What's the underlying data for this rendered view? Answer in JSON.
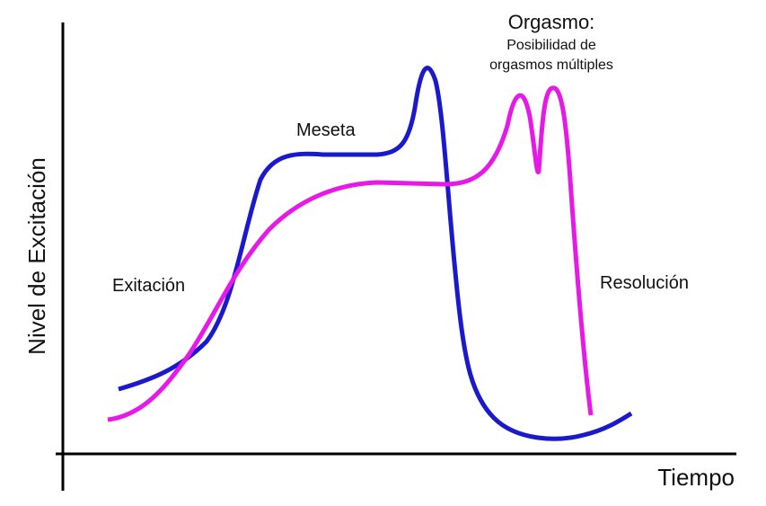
{
  "axes": {
    "y_label": "Nivel de Excitación",
    "x_label": "Tiempo"
  },
  "stages": {
    "excitement": "Exitación",
    "plateau": "Meseta",
    "orgasm": "Orgasmo:",
    "orgasm_note_1": "Posibilidad de",
    "orgasm_note_2": "orgasmos múltiples",
    "resolution": "Resolución"
  }
}
